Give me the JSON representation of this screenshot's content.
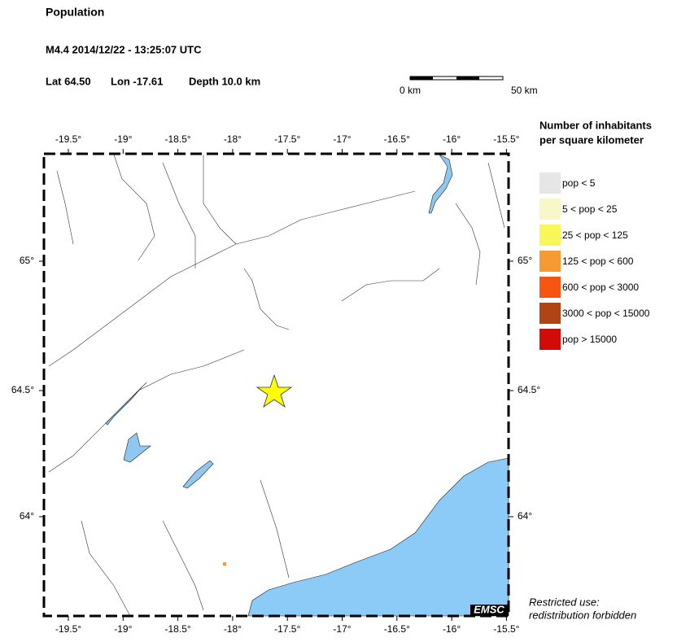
{
  "header": {
    "title": "Population",
    "event": "M4.4  2014/12/22 - 13:25:07 UTC",
    "lat": "Lat 64.50",
    "lon": "Lon -17.61",
    "depth": "Depth  10.0 km"
  },
  "scale": {
    "start": "0 km",
    "end": "50 km"
  },
  "map": {
    "lon_ticks": [
      "-19.5°",
      "-19°",
      "-18.5°",
      "-18°",
      "-17.5°",
      "-17°",
      "-16.5°",
      "-16°",
      "-15.5°"
    ],
    "lat_ticks": [
      "65°",
      "64.5°",
      "64°"
    ],
    "logo": "EMSC"
  },
  "legend": {
    "title": [
      "Number of inhabitants",
      "per square kilometer"
    ],
    "items": [
      {
        "label": "pop < 5",
        "color": "#e6e6e6"
      },
      {
        "label": "5 < pop < 25",
        "color": "#f7f7c8"
      },
      {
        "label": "25 < pop < 125",
        "color": "#f7f75a"
      },
      {
        "label": "125 < pop < 600",
        "color": "#f79a32"
      },
      {
        "label": "600 < pop < 3000",
        "color": "#f75512"
      },
      {
        "label": "3000 < pop < 15000",
        "color": "#b04414"
      },
      {
        "label": "pop > 15000",
        "color": "#d20a0a"
      }
    ]
  },
  "note": [
    "Restricted use:",
    "redistribution forbidden"
  ]
}
